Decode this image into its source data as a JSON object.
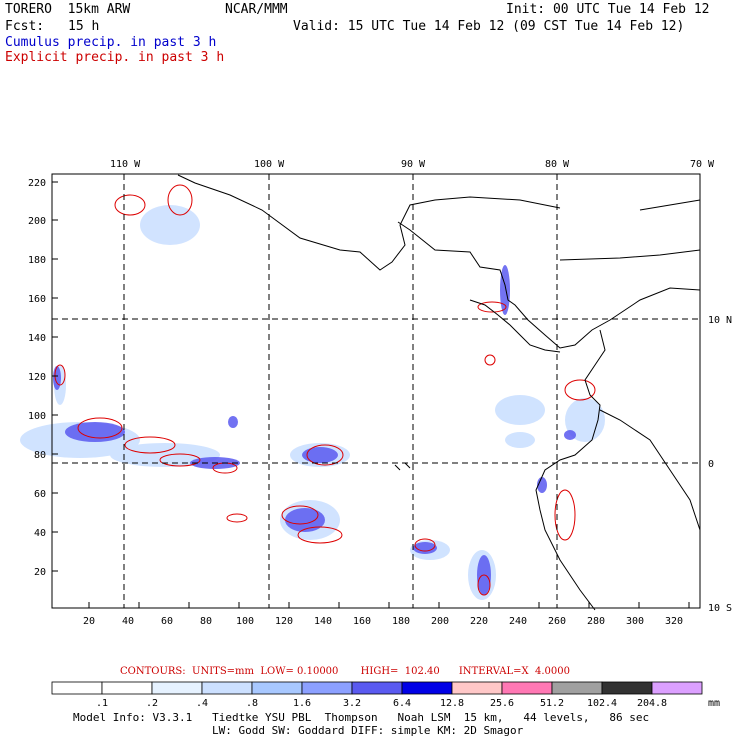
{
  "header": {
    "model": "TORERO  15km ARW",
    "org": "NCAR/MMM",
    "init": "Init: 00 UTC Tue 14 Feb 12",
    "fcst_label": "Fcst:",
    "fcst_value": "15 h",
    "valid": "Valid: 15 UTC Tue 14 Feb 12 (09 CST Tue 14 Feb 12)",
    "cumulus_title": "Cumulus precip. in past 3 h",
    "explicit_title": "Explicit precip. in past 3 h"
  },
  "map": {
    "top_lon_labels": [
      "110 W",
      "100 W",
      "90 W",
      "80 W",
      "70 W"
    ],
    "right_lat_labels": [
      "10 N",
      "0",
      "10 S"
    ],
    "left_grid_labels": [
      "220",
      "200",
      "180",
      "160",
      "140",
      "120",
      "100",
      "80",
      "60",
      "40",
      "20"
    ],
    "bottom_grid_labels": [
      "20",
      "40",
      "60",
      "80",
      "100",
      "120",
      "140",
      "160",
      "180",
      "200",
      "220",
      "240",
      "260",
      "280",
      "300",
      "320"
    ]
  },
  "contours": {
    "label": "CONTOURS:",
    "units": "UNITS=mm",
    "low": "LOW= 0.10000",
    "high": "HIGH=  102.40",
    "interval": "INTERVAL=X  4.0000"
  },
  "colorbar": {
    "ticks": [
      ".1",
      ".2",
      ".4",
      ".8",
      "1.6",
      "3.2",
      "6.4",
      "12.8",
      "25.6",
      "51.2",
      "102.4",
      "204.8"
    ],
    "colors": [
      "#ffffff",
      "#ffffff",
      "#e6f2ff",
      "#cce0ff",
      "#a8c8ff",
      "#8ca0ff",
      "#5a5af0",
      "#0000e6",
      "#ffc8c8",
      "#ff78b4",
      "#a0a0a0",
      "#323232",
      "#dca0ff"
    ],
    "unit": "mm"
  },
  "model_info": {
    "line1": "Model Info: V3.3.1   Tiedtke YSU PBL  Thompson   Noah LSM  15 km,   44 levels,   86 sec",
    "line2": "LW: Godd SW: Goddard DIFF: simple KM: 2D Smagor"
  }
}
